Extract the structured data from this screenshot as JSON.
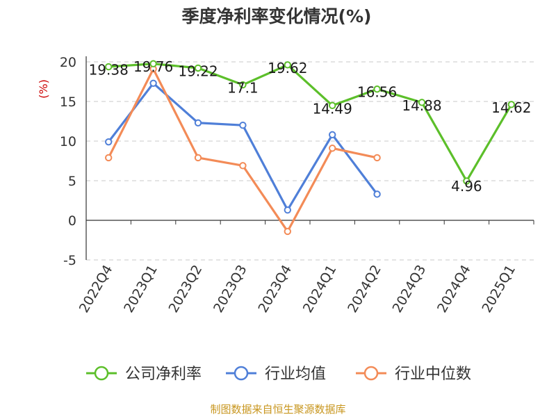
{
  "chart_data": {
    "type": "line",
    "title": "季度净利率变化情况(%)",
    "ylabel": "(%)",
    "ylim": [
      -5,
      20
    ],
    "yticks": [
      20,
      15,
      10,
      5,
      0,
      -5
    ],
    "grid": true,
    "legend_position": "bottom",
    "categories": [
      "2022Q4",
      "2023Q1",
      "2023Q2",
      "2023Q3",
      "2023Q4",
      "2024Q1",
      "2024Q2",
      "2024Q3",
      "2024Q4",
      "2025Q1"
    ],
    "series": [
      {
        "name": "公司净利率",
        "color": "#5cbf2a",
        "values": [
          19.38,
          19.76,
          19.22,
          17.1,
          19.62,
          14.49,
          16.56,
          14.88,
          4.96,
          14.62
        ],
        "labels": [
          "19.38",
          "19.76",
          "19.22",
          "17.1",
          "19.62",
          "14.49",
          "16.56",
          "14.88",
          "4.96",
          "14.62"
        ]
      },
      {
        "name": "行业均值",
        "color": "#4f7fd8",
        "values": [
          9.9,
          17.3,
          12.3,
          12.0,
          1.3,
          10.8,
          3.3,
          null,
          null,
          null
        ]
      },
      {
        "name": "行业中位数",
        "color": "#f38b57",
        "values": [
          7.9,
          19.1,
          7.9,
          6.9,
          -1.4,
          9.1,
          7.9,
          null,
          null,
          null
        ]
      }
    ],
    "source": "制图数据来自恒生聚源数据库"
  }
}
